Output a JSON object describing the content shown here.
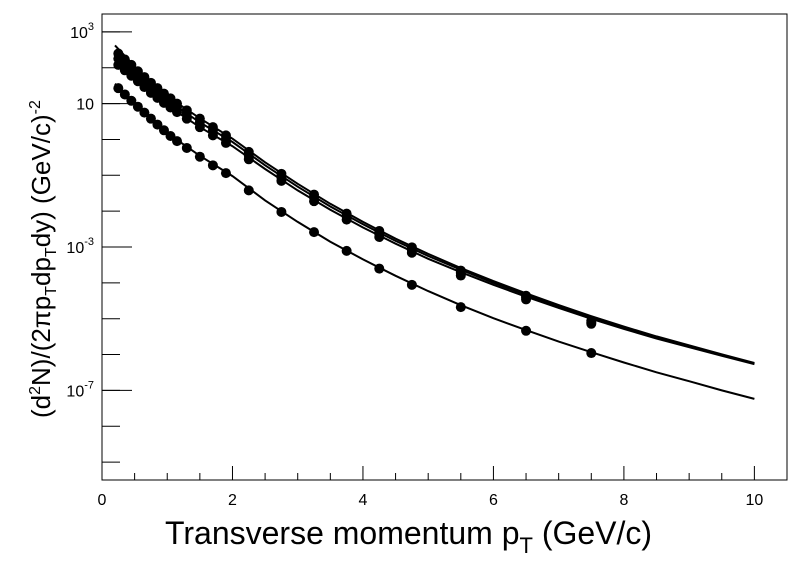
{
  "chart_data": {
    "type": "scatter",
    "xlabel_main": "Transverse momentum p",
    "xlabel_sub": "T",
    "xlabel_tail": " (GeV/c)",
    "ylabel_parts": {
      "p1": "(d",
      "p2": "2",
      "p3": "N)/(2πp",
      "p4": "T",
      "p5": "dp",
      "p6": "T",
      "p7": "dy) (GeV/c)",
      "p8": "-2"
    },
    "xlim": [
      0,
      10.5
    ],
    "ylim_log10": [
      -9.5,
      3.5
    ],
    "ylog": true,
    "x_ticks": [
      {
        "value": 0,
        "label": "0"
      },
      {
        "value": 2,
        "label": "2"
      },
      {
        "value": 4,
        "label": "4"
      },
      {
        "value": 6,
        "label": "6"
      },
      {
        "value": 8,
        "label": "8"
      },
      {
        "value": 10,
        "label": "10"
      }
    ],
    "y_ticks_log10": [
      {
        "value": 3,
        "base": "10",
        "exp": "3"
      },
      {
        "value": 1,
        "base": "10",
        "exp": ""
      },
      {
        "value": -3,
        "base": "10",
        "exp": "-3"
      },
      {
        "value": -7,
        "base": "10",
        "exp": "-7"
      }
    ],
    "y_minor_log10": [
      3,
      2,
      1,
      0,
      -1,
      -2,
      -3,
      -4,
      -5,
      -6,
      -7,
      -8,
      -9
    ],
    "series": [
      {
        "points": [
          [
            0.25,
            250
          ],
          [
            0.35,
            170
          ],
          [
            0.45,
            120
          ],
          [
            0.55,
            80
          ],
          [
            0.65,
            55
          ],
          [
            0.75,
            38
          ],
          [
            0.85,
            27
          ],
          [
            0.95,
            19
          ],
          [
            1.05,
            14
          ],
          [
            1.15,
            10
          ],
          [
            1.3,
            6.5
          ],
          [
            1.5,
            3.8
          ],
          [
            1.7,
            2.2
          ],
          [
            1.9,
            1.3
          ],
          [
            2.25,
            0.45
          ],
          [
            2.75,
            0.11
          ],
          [
            3.25,
            0.029
          ],
          [
            3.75,
            0.0085
          ],
          [
            4.25,
            0.0028
          ],
          [
            4.75,
            0.00098
          ],
          [
            5.5,
            0.00022
          ],
          [
            6.5,
            4.35e-05
          ],
          [
            7.5,
            8.8e-06
          ]
        ],
        "fit": [
          [
            0.2,
            420
          ],
          [
            0.5,
            110
          ],
          [
            1.0,
            16
          ],
          [
            1.5,
            3.9
          ],
          [
            2.0,
            1.05
          ],
          [
            2.5,
            0.23
          ],
          [
            3.0,
            0.058
          ],
          [
            3.5,
            0.016
          ],
          [
            4.0,
            0.005
          ],
          [
            4.5,
            0.0017
          ],
          [
            5.0,
            0.00064
          ],
          [
            5.5,
            0.00026
          ],
          [
            6.0,
            0.000112
          ],
          [
            6.5,
            5.1e-05
          ],
          [
            7.0,
            2.4e-05
          ],
          [
            7.5,
            1.17e-05
          ],
          [
            8.0,
            6e-06
          ],
          [
            8.5,
            3.2e-06
          ],
          [
            9.0,
            1.8e-06
          ],
          [
            9.5,
            1.01e-06
          ],
          [
            10.0,
            5.8e-07
          ]
        ]
      },
      {
        "points": [
          [
            0.25,
            180
          ],
          [
            0.35,
            125
          ],
          [
            0.45,
            88
          ],
          [
            0.55,
            60
          ],
          [
            0.65,
            42
          ],
          [
            0.75,
            29
          ],
          [
            0.85,
            21
          ],
          [
            0.95,
            15
          ],
          [
            1.05,
            11
          ],
          [
            1.15,
            8
          ],
          [
            1.3,
            5.2
          ],
          [
            1.5,
            3.0
          ],
          [
            1.7,
            1.75
          ],
          [
            1.9,
            1.05
          ],
          [
            2.25,
            0.36
          ],
          [
            2.75,
            0.088
          ],
          [
            3.25,
            0.024
          ],
          [
            3.75,
            0.0071
          ],
          [
            4.25,
            0.0023
          ],
          [
            4.75,
            0.00082
          ],
          [
            5.5,
            0.00019
          ],
          [
            6.5,
            3.95e-05
          ],
          [
            7.5,
            8e-06
          ]
        ],
        "fit": [
          [
            0.2,
            300
          ],
          [
            0.5,
            80
          ],
          [
            1.0,
            12.5
          ],
          [
            1.5,
            3.0
          ],
          [
            2.0,
            0.85
          ],
          [
            2.5,
            0.19
          ],
          [
            3.0,
            0.048
          ],
          [
            3.5,
            0.0135
          ],
          [
            4.0,
            0.0043
          ],
          [
            4.5,
            0.00148
          ],
          [
            5.0,
            0.00056
          ],
          [
            5.5,
            0.000232
          ],
          [
            6.0,
            0.0001
          ],
          [
            6.5,
            4.6e-05
          ],
          [
            7.0,
            2.2e-05
          ],
          [
            7.5,
            1.08e-05
          ],
          [
            8.0,
            5.6e-06
          ],
          [
            8.5,
            3e-06
          ],
          [
            9.0,
            1.7e-06
          ],
          [
            9.5,
            9.6e-07
          ],
          [
            10.0,
            5.6e-07
          ]
        ]
      },
      {
        "points": [
          [
            0.25,
            120
          ],
          [
            0.35,
            85
          ],
          [
            0.45,
            60
          ],
          [
            0.55,
            42
          ],
          [
            0.65,
            29
          ],
          [
            0.75,
            20
          ],
          [
            0.85,
            14.5
          ],
          [
            0.95,
            10.5
          ],
          [
            1.05,
            7.8
          ],
          [
            1.15,
            5.8
          ],
          [
            1.3,
            3.8
          ],
          [
            1.5,
            2.2
          ],
          [
            1.7,
            1.3
          ],
          [
            1.9,
            0.8
          ],
          [
            2.25,
            0.28
          ],
          [
            2.75,
            0.07
          ],
          [
            3.25,
            0.019
          ],
          [
            3.75,
            0.0058
          ],
          [
            4.25,
            0.0019
          ],
          [
            4.75,
            0.00069
          ],
          [
            5.5,
            0.00016
          ],
          [
            6.5,
            3.45e-05
          ],
          [
            7.5,
            7.2e-06
          ]
        ],
        "fit": [
          [
            0.2,
            200
          ],
          [
            0.5,
            55
          ],
          [
            1.0,
            9.0
          ],
          [
            1.5,
            2.2
          ],
          [
            2.0,
            0.65
          ],
          [
            2.5,
            0.15
          ],
          [
            3.0,
            0.038
          ],
          [
            3.5,
            0.011
          ],
          [
            4.0,
            0.0035
          ],
          [
            4.5,
            0.00124
          ],
          [
            5.0,
            0.00047
          ],
          [
            5.5,
            0.000198
          ],
          [
            6.0,
            8.8e-05
          ],
          [
            6.5,
            4.1e-05
          ],
          [
            7.0,
            2e-05
          ],
          [
            7.5,
            9.9e-06
          ],
          [
            8.0,
            5.2e-06
          ],
          [
            8.5,
            2.8e-06
          ],
          [
            9.0,
            1.6e-06
          ],
          [
            9.5,
            9.2e-07
          ],
          [
            10.0,
            5.4e-07
          ]
        ]
      },
      {
        "points": [
          [
            0.25,
            27
          ],
          [
            0.35,
            18
          ],
          [
            0.45,
            12
          ],
          [
            0.55,
            8.2
          ],
          [
            0.65,
            5.6
          ],
          [
            0.75,
            3.8
          ],
          [
            0.85,
            2.6
          ],
          [
            0.95,
            1.8
          ],
          [
            1.05,
            1.25
          ],
          [
            1.15,
            0.9
          ],
          [
            1.3,
            0.58
          ],
          [
            1.5,
            0.33
          ],
          [
            1.7,
            0.19
          ],
          [
            1.9,
            0.115
          ],
          [
            2.25,
            0.038
          ],
          [
            2.75,
            0.0095
          ],
          [
            3.25,
            0.0026
          ],
          [
            3.75,
            0.00078
          ],
          [
            4.25,
            0.00025
          ],
          [
            4.75,
            8.8e-05
          ],
          [
            5.5,
            2.1e-05
          ],
          [
            6.5,
            4.6e-06
          ],
          [
            7.5,
            1.1e-06
          ]
        ],
        "fit": [
          [
            0.2,
            36
          ],
          [
            0.5,
            10
          ],
          [
            1.0,
            1.5
          ],
          [
            1.5,
            0.35
          ],
          [
            2.0,
            0.095
          ],
          [
            2.5,
            0.02
          ],
          [
            3.0,
            0.005
          ],
          [
            3.5,
            0.00141
          ],
          [
            4.0,
            0.00045
          ],
          [
            4.5,
            0.000157
          ],
          [
            5.0,
            5.9e-05
          ],
          [
            5.5,
            2.38e-05
          ],
          [
            6.0,
            1.03e-05
          ],
          [
            6.5,
            4.8e-06
          ],
          [
            7.0,
            2.3e-06
          ],
          [
            7.5,
            1.16e-06
          ],
          [
            8.0,
            6e-07
          ],
          [
            8.5,
            3.2e-07
          ],
          [
            9.0,
            1.8e-07
          ],
          [
            9.5,
            1e-07
          ],
          [
            10.0,
            5.8e-08
          ]
        ]
      }
    ],
    "color": "#000000"
  }
}
